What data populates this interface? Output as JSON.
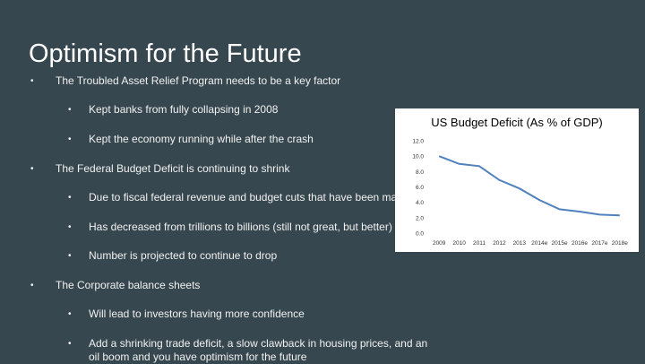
{
  "slide": {
    "title": "Optimism for the Future",
    "bullets": [
      {
        "text": "The Troubled Asset Relief Program needs to be a key factor",
        "sub": [
          "Kept banks from fully collapsing in 2008",
          "Kept the economy running while after the crash"
        ]
      },
      {
        "text": "The Federal Budget Deficit is continuing to shrink",
        "sub": [
          "Due to fiscal federal revenue and budget cuts that have been ma",
          "Has decreased from trillions to billions (still not great, but better)",
          "Number is projected to continue to drop"
        ]
      },
      {
        "text": "The Corporate balance sheets",
        "sub": [
          "Will lead to investors having more confidence",
          "Add a shrinking trade deficit, a slow clawback in housing prices, and an oil boom and you have optimism for the future"
        ]
      }
    ]
  },
  "chart_data": {
    "type": "line",
    "title": "US Budget Deficit (As % of GDP)",
    "categories": [
      "2009",
      "2010",
      "2011",
      "2012",
      "2013",
      "2014e",
      "2015e",
      "2016e",
      "2017e",
      "2018e"
    ],
    "series": [
      {
        "values": [
          10.0,
          9.0,
          8.7,
          6.9,
          5.8,
          4.3,
          3.1,
          2.8,
          2.4,
          2.3
        ]
      }
    ],
    "yticks": [
      "12.0",
      "10.0",
      "8.0",
      "6.0",
      "4.0",
      "2.0",
      "0.0"
    ],
    "ylim": [
      0,
      12
    ],
    "line_color": "#4f81bd",
    "grid": false
  }
}
